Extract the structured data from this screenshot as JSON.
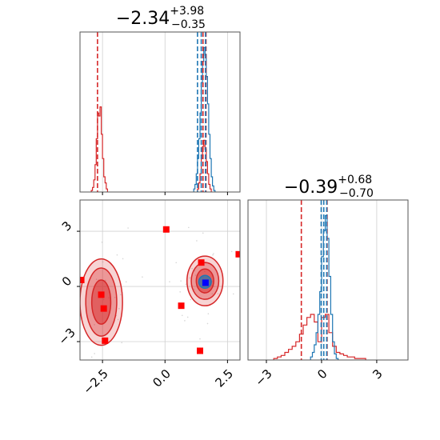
{
  "chart_data": [
    {
      "panel": "marginal-x",
      "type": "histogram",
      "title": {
        "value": "−2.34",
        "plus": "+3.98",
        "minus": "−0.35"
      },
      "xlim": [
        -3.4,
        3.0
      ],
      "grid": true,
      "series": [
        {
          "name": "",
          "color": "#d62728",
          "bins": [
            [
              -2.95,
              -2.9,
              0.01
            ],
            [
              -2.9,
              -2.85,
              0.03
            ],
            [
              -2.85,
              -2.8,
              0.08
            ],
            [
              -2.8,
              -2.75,
              0.18
            ],
            [
              -2.75,
              -2.7,
              0.35
            ],
            [
              -2.7,
              -2.65,
              0.52
            ],
            [
              -2.65,
              -2.6,
              0.5
            ],
            [
              -2.6,
              -2.55,
              0.56
            ],
            [
              -2.55,
              -2.5,
              0.38
            ],
            [
              -2.5,
              -2.45,
              0.22
            ],
            [
              -2.45,
              -2.4,
              0.1
            ],
            [
              -2.4,
              -2.35,
              0.06
            ],
            [
              -2.35,
              -2.3,
              0.02
            ],
            [
              1.3,
              1.35,
              0.02
            ],
            [
              1.35,
              1.4,
              0.06
            ],
            [
              1.4,
              1.45,
              0.12
            ],
            [
              1.45,
              1.5,
              0.22
            ],
            [
              1.5,
              1.55,
              0.3
            ],
            [
              1.55,
              1.6,
              0.34
            ],
            [
              1.6,
              1.65,
              0.28
            ],
            [
              1.65,
              1.7,
              0.2
            ],
            [
              1.7,
              1.75,
              0.12
            ],
            [
              1.75,
              1.8,
              0.05
            ],
            [
              1.8,
              1.85,
              0.02
            ]
          ]
        },
        {
          "name": "",
          "color": "#1f77b4",
          "bins": [
            [
              1.15,
              1.2,
              0.02
            ],
            [
              1.2,
              1.25,
              0.05
            ],
            [
              1.25,
              1.3,
              0.12
            ],
            [
              1.3,
              1.35,
              0.22
            ],
            [
              1.35,
              1.4,
              0.35
            ],
            [
              1.4,
              1.45,
              0.52
            ],
            [
              1.45,
              1.5,
              0.72
            ],
            [
              1.5,
              1.55,
              0.86
            ],
            [
              1.55,
              1.6,
              0.95
            ],
            [
              1.6,
              1.65,
              0.9
            ],
            [
              1.65,
              1.7,
              0.76
            ],
            [
              1.7,
              1.75,
              0.58
            ],
            [
              1.75,
              1.8,
              0.38
            ],
            [
              1.8,
              1.85,
              0.22
            ],
            [
              1.85,
              1.9,
              0.1
            ],
            [
              1.9,
              1.95,
              0.04
            ],
            [
              1.95,
              2.0,
              0.01
            ]
          ]
        }
      ],
      "vlines": [
        {
          "x": -2.7,
          "color": "#d62728"
        },
        {
          "x": 1.52,
          "color": "#d62728"
        },
        {
          "x": 1.64,
          "color": "#d62728"
        },
        {
          "x": 1.3,
          "color": "#1f77b4"
        },
        {
          "x": 1.45,
          "color": "#1f77b4"
        },
        {
          "x": 1.62,
          "color": "#1f77b4"
        }
      ]
    },
    {
      "panel": "joint",
      "type": "scatter",
      "xlim": [
        -3.4,
        3.0
      ],
      "ylim": [
        -4.0,
        4.7
      ],
      "xticks": [
        {
          "v": -2.5,
          "label": "−2.5"
        },
        {
          "v": 0.0,
          "label": "0.0"
        },
        {
          "v": 2.5,
          "label": "2.5"
        }
      ],
      "yticks": [
        {
          "v": -3,
          "label": "−3"
        },
        {
          "v": 0,
          "label": "0"
        },
        {
          "v": 3,
          "label": "3"
        }
      ],
      "grid": true,
      "red_markers": [
        [
          0.05,
          3.1
        ],
        [
          -3.35,
          0.35
        ],
        [
          2.95,
          1.75
        ],
        [
          1.45,
          1.3
        ],
        [
          -2.55,
          -0.45
        ],
        [
          -2.45,
          -1.2
        ],
        [
          -2.4,
          -2.95
        ],
        [
          0.65,
          -1.05
        ],
        [
          1.4,
          -3.5
        ]
      ],
      "blue_markers": [
        [
          1.62,
          0.2
        ]
      ],
      "contours": [
        {
          "cx": -2.55,
          "cy": -0.85,
          "rx": 0.85,
          "ry": 2.35,
          "color": "#d62728",
          "fill": 0.2
        },
        {
          "cx": -2.55,
          "cy": -0.85,
          "rx": 0.62,
          "ry": 1.85,
          "color": "#d62728",
          "fill": 0.35
        },
        {
          "cx": -2.55,
          "cy": -0.85,
          "rx": 0.38,
          "ry": 1.2,
          "color": "#d62728",
          "fill": 0.5
        },
        {
          "cx": 1.6,
          "cy": 0.3,
          "rx": 0.72,
          "ry": 1.35,
          "color": "#d62728",
          "fill": 0.2
        },
        {
          "cx": 1.6,
          "cy": 0.3,
          "rx": 0.55,
          "ry": 1.0,
          "color": "#d62728",
          "fill": 0.35
        },
        {
          "cx": 1.6,
          "cy": 0.3,
          "rx": 0.35,
          "ry": 0.65,
          "color": "#d62728",
          "fill": 0.5
        },
        {
          "cx": 1.6,
          "cy": 0.25,
          "rx": 0.25,
          "ry": 0.35,
          "color": "#1f77b4",
          "fill": 0.7
        }
      ]
    },
    {
      "panel": "marginal-y",
      "type": "histogram",
      "title": {
        "value": "−0.39",
        "plus": "+0.68",
        "minus": "−0.70"
      },
      "xlim": [
        -4.0,
        4.7
      ],
      "xticks": [
        {
          "v": -3,
          "label": "−3"
        },
        {
          "v": 0,
          "label": "0"
        },
        {
          "v": 3,
          "label": "3"
        }
      ],
      "grid": true,
      "series": [
        {
          "name": "",
          "color": "#d62728",
          "bins": [
            [
              -2.6,
              -2.4,
              0.01
            ],
            [
              -2.4,
              -2.2,
              0.02
            ],
            [
              -2.2,
              -2.0,
              0.03
            ],
            [
              -2.0,
              -1.8,
              0.05
            ],
            [
              -1.8,
              -1.6,
              0.07
            ],
            [
              -1.6,
              -1.4,
              0.09
            ],
            [
              -1.4,
              -1.2,
              0.12
            ],
            [
              -1.2,
              -1.0,
              0.17
            ],
            [
              -1.0,
              -0.8,
              0.23
            ],
            [
              -0.8,
              -0.6,
              0.28
            ],
            [
              -0.6,
              -0.4,
              0.3
            ],
            [
              -0.4,
              -0.2,
              0.25
            ],
            [
              -0.2,
              0.0,
              0.12
            ],
            [
              0.0,
              0.2,
              0.28
            ],
            [
              0.2,
              0.4,
              0.3
            ],
            [
              0.4,
              0.6,
              0.18
            ],
            [
              0.6,
              0.8,
              0.09
            ],
            [
              0.8,
              1.0,
              0.05
            ],
            [
              1.0,
              1.2,
              0.04
            ],
            [
              1.2,
              1.4,
              0.03
            ],
            [
              1.4,
              1.6,
              0.02
            ],
            [
              1.6,
              1.8,
              0.02
            ],
            [
              1.8,
              2.0,
              0.01
            ],
            [
              2.0,
              2.2,
              0.01
            ],
            [
              2.2,
              2.4,
              0.01
            ]
          ]
        },
        {
          "name": "",
          "color": "#1f77b4",
          "bins": [
            [
              -0.6,
              -0.5,
              0.02
            ],
            [
              -0.5,
              -0.4,
              0.05
            ],
            [
              -0.4,
              -0.3,
              0.1
            ],
            [
              -0.3,
              -0.2,
              0.18
            ],
            [
              -0.2,
              -0.1,
              0.3
            ],
            [
              -0.1,
              0.0,
              0.45
            ],
            [
              0.0,
              0.1,
              0.68
            ],
            [
              0.1,
              0.2,
              0.85
            ],
            [
              0.2,
              0.3,
              0.95
            ],
            [
              0.3,
              0.4,
              0.8
            ],
            [
              0.4,
              0.5,
              0.55
            ],
            [
              0.5,
              0.6,
              0.3
            ],
            [
              0.6,
              0.7,
              0.12
            ],
            [
              0.7,
              0.8,
              0.04
            ],
            [
              0.8,
              0.9,
              0.01
            ]
          ]
        }
      ],
      "vlines": [
        {
          "x": -1.1,
          "color": "#d62728"
        },
        {
          "x": 0.3,
          "color": "#d62728"
        },
        {
          "x": -0.02,
          "color": "#1f77b4"
        },
        {
          "x": 0.12,
          "color": "#1f77b4"
        },
        {
          "x": 0.28,
          "color": "#1f77b4"
        }
      ]
    }
  ]
}
